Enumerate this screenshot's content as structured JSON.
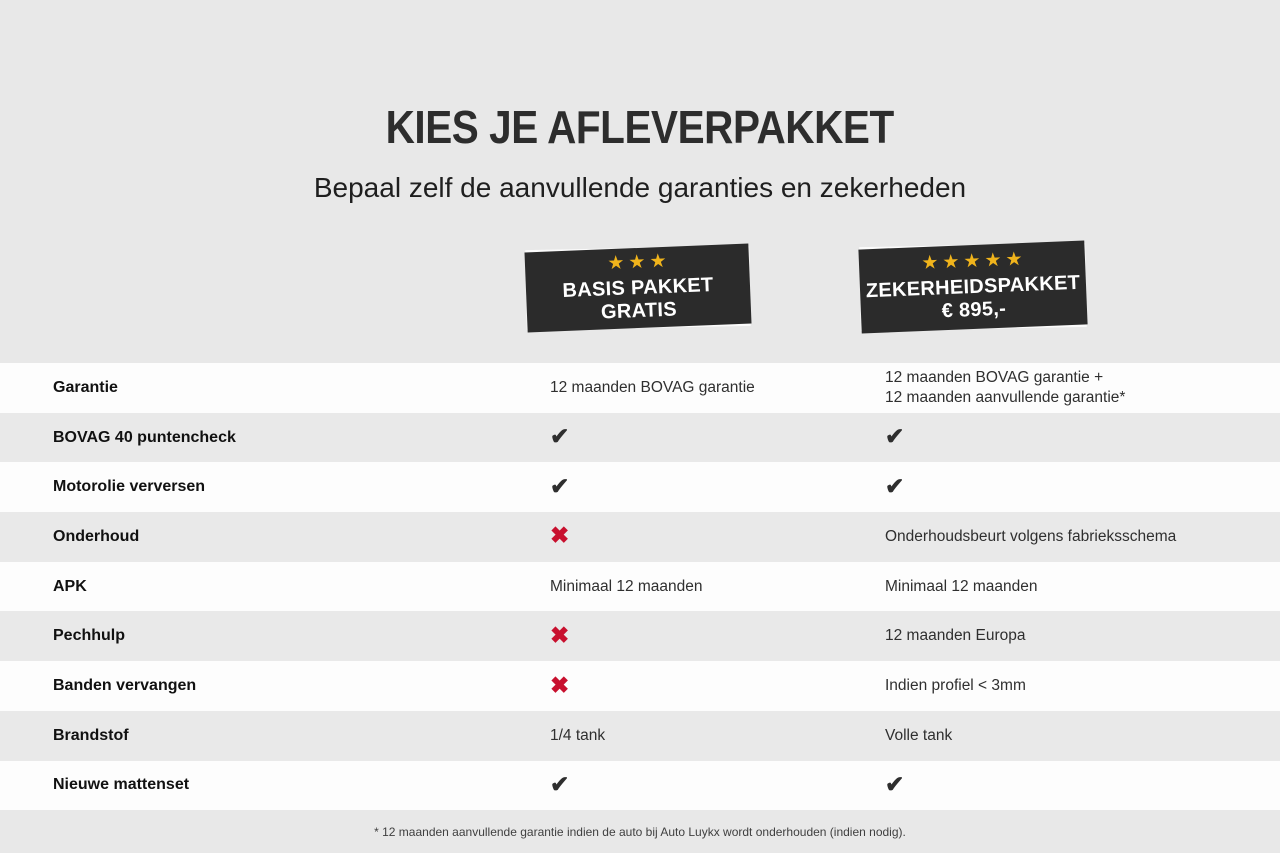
{
  "header": {
    "title": "KIES JE AFLEVERPAKKET",
    "subtitle": "Bepaal zelf de aanvullende garanties en zekerheden"
  },
  "packages": [
    {
      "name": "BASIS PAKKET",
      "price": "GRATIS",
      "stars": 3
    },
    {
      "name": "ZEKERHEIDSPAKKET",
      "price": "€ 895,-",
      "stars": 5
    }
  ],
  "marks": {
    "check": "✔",
    "cross": "✖",
    "star": "★"
  },
  "colors": {
    "page_background": "#e8e8e8",
    "row_white": "#fdfdfd",
    "row_gray": "#e9e9e9",
    "badge_background": "#2b2b2b",
    "star_gold": "#f0b41c",
    "check_dark": "#2e2e2e",
    "cross_red": "#c8102e"
  },
  "table": {
    "rows": [
      {
        "label": "Garantie",
        "basis": {
          "text": "12 maanden BOVAG garantie"
        },
        "zekerheid": {
          "lines": [
            "12 maanden BOVAG garantie +",
            "12 maanden aanvullende garantie*"
          ]
        }
      },
      {
        "label": "BOVAG 40 puntencheck",
        "basis": {
          "mark": "check"
        },
        "zekerheid": {
          "mark": "check"
        }
      },
      {
        "label": "Motorolie verversen",
        "basis": {
          "mark": "check"
        },
        "zekerheid": {
          "mark": "check"
        }
      },
      {
        "label": "Onderhoud",
        "basis": {
          "mark": "cross"
        },
        "zekerheid": {
          "text": "Onderhoudsbeurt volgens fabrieksschema"
        }
      },
      {
        "label": "APK",
        "basis": {
          "text": "Minimaal 12 maanden"
        },
        "zekerheid": {
          "text": "Minimaal 12 maanden"
        }
      },
      {
        "label": "Pechhulp",
        "basis": {
          "mark": "cross"
        },
        "zekerheid": {
          "text": "12 maanden Europa"
        }
      },
      {
        "label": "Banden vervangen",
        "basis": {
          "mark": "cross"
        },
        "zekerheid": {
          "text": "Indien profiel < 3mm"
        }
      },
      {
        "label": "Brandstof",
        "basis": {
          "text": "1/4 tank"
        },
        "zekerheid": {
          "text": "Volle tank"
        }
      },
      {
        "label": "Nieuwe mattenset",
        "basis": {
          "mark": "check"
        },
        "zekerheid": {
          "mark": "check"
        }
      }
    ]
  },
  "footnote": "* 12 maanden aanvullende garantie indien de auto bij Auto Luykx wordt onderhouden (indien nodig)."
}
